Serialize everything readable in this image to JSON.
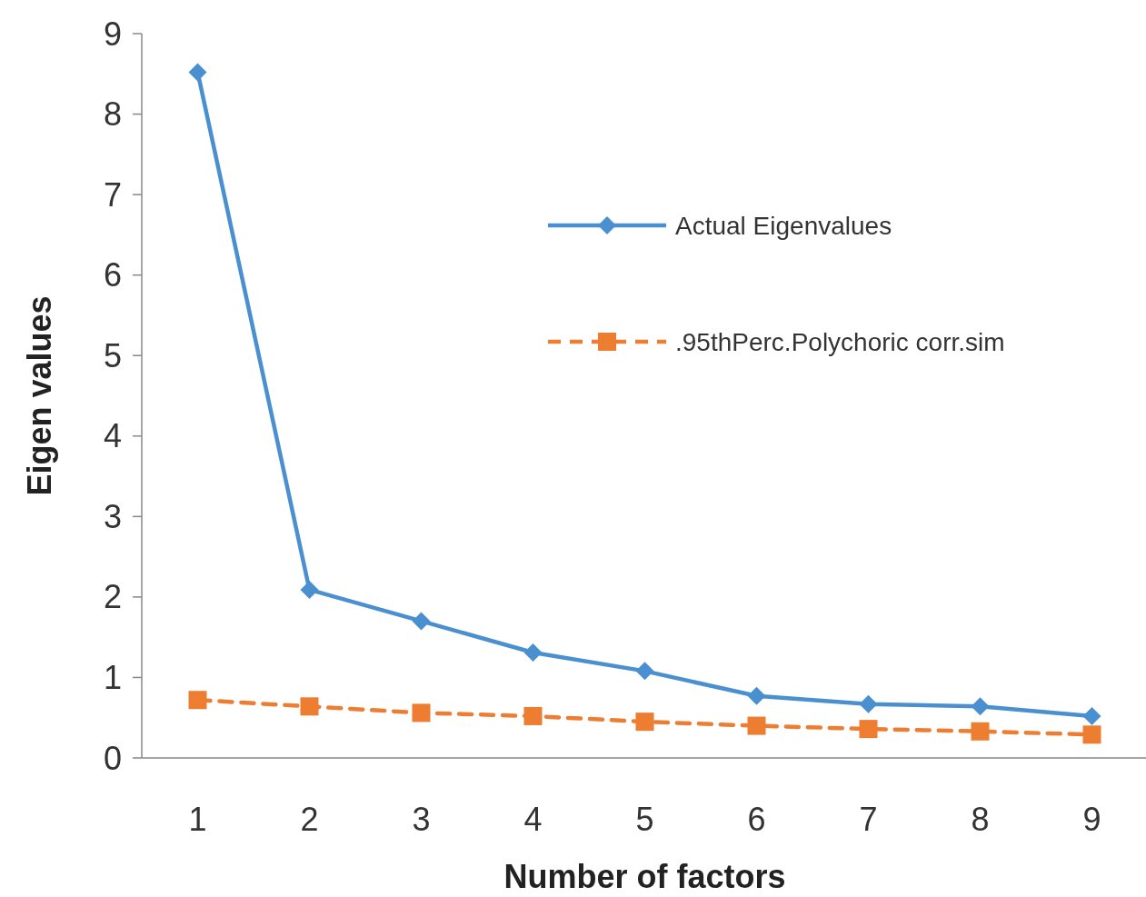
{
  "chart_data": {
    "type": "line",
    "xlabel": "Number of factors",
    "ylabel": "Eigen values",
    "categories": [
      "1",
      "2",
      "3",
      "4",
      "5",
      "6",
      "7",
      "8",
      "9"
    ],
    "series": [
      {
        "name": "Actual Eigenvalues",
        "color": "#4a90d0",
        "values": [
          8.52,
          2.09,
          1.7,
          1.31,
          1.08,
          0.77,
          0.67,
          0.64,
          0.52
        ],
        "marker": "diamond",
        "line_style": "solid"
      },
      {
        "name": ".95thPerc.Polychoric corr.sim",
        "color": "#ed7d31",
        "values": [
          0.72,
          0.64,
          0.56,
          0.52,
          0.45,
          0.4,
          0.36,
          0.33,
          0.29
        ],
        "marker": "square",
        "line_style": "dashed"
      }
    ],
    "ylim": [
      0,
      9
    ],
    "yticks": [
      0,
      1,
      2,
      3,
      4,
      5,
      6,
      7,
      8,
      9
    ],
    "grid": false,
    "legend": "top right"
  }
}
